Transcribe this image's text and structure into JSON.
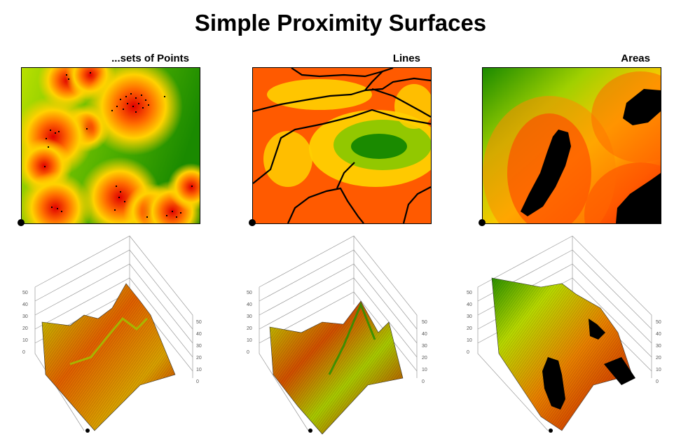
{
  "title": "Simple Proximity Surfaces",
  "panels": [
    {
      "label": "...sets of Points"
    },
    {
      "label": "Lines"
    },
    {
      "label": "Areas"
    }
  ],
  "axis": {
    "left_ticks": [
      "0",
      "10",
      "20",
      "30",
      "40",
      "50"
    ],
    "right_ticks": [
      "0",
      "10",
      "20",
      "30",
      "40",
      "50"
    ]
  },
  "colors": {
    "near": "#e00000",
    "mid": "#ffee00",
    "far": "#1a8a00",
    "feature": "#000000"
  }
}
